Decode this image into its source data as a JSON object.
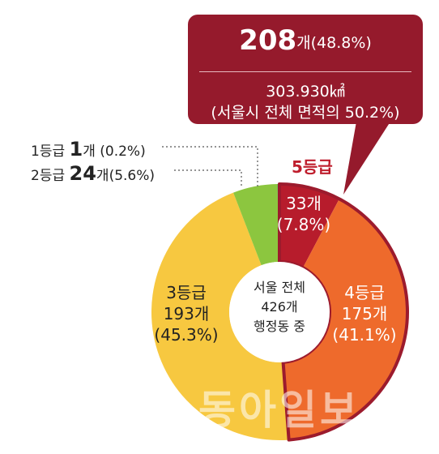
{
  "callout": {
    "count": "208",
    "count_unit": "개",
    "share": "(48.8%)",
    "area": "303.930㎢",
    "area_note": "(서울시 전체 면적의 50.2%)"
  },
  "legend_small": [
    {
      "grade": "1등급",
      "count": "1",
      "unit": "개",
      "pct": " (0.2%)"
    },
    {
      "grade": "2등급",
      "count": "24",
      "unit": "개",
      "pct": "(5.6%)"
    }
  ],
  "labels": {
    "grade5": "5등급",
    "seg5_count": "33개",
    "seg5_pct": "(7.8%)",
    "seg4_grade": "4등급",
    "seg4_count": "175개",
    "seg4_pct": "(41.1%)",
    "seg3_grade": "3등급",
    "seg3_count": "193개",
    "seg3_pct": "(45.3%)"
  },
  "center": {
    "line1": "서울 전체",
    "line2": "426개",
    "line3": "행정동 중"
  },
  "watermark": "동아일보",
  "chart_data": {
    "type": "pie",
    "donut": true,
    "categories": [
      "1등급",
      "2등급",
      "3등급",
      "4등급",
      "5등급"
    ],
    "values": [
      1,
      24,
      193,
      175,
      33
    ],
    "percentages": [
      0.2,
      5.6,
      45.3,
      41.1,
      7.8
    ],
    "total": 426,
    "colors": [
      "#1e7f3a",
      "#8cc63f",
      "#f7c840",
      "#ee6a2c",
      "#b71c2c"
    ],
    "highlight": {
      "categories": [
        "4등급",
        "5등급"
      ],
      "outline_color": "#9c1b2d"
    }
  }
}
